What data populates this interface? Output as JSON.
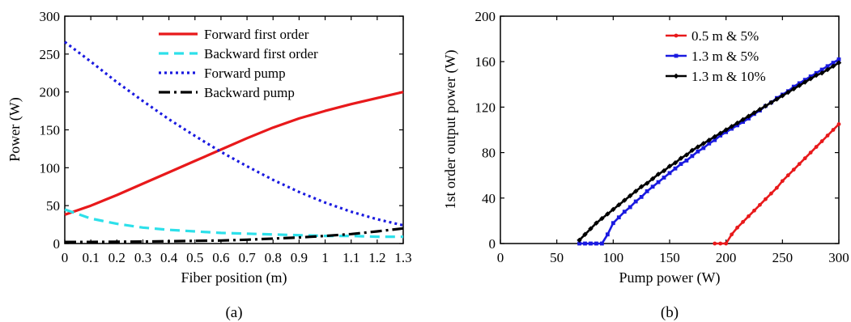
{
  "chart_data": [
    {
      "type": "line",
      "panel_label": "(a)",
      "xlabel": "Fiber position (m)",
      "ylabel": "Power (W)",
      "xlim": [
        0,
        1.3
      ],
      "ylim": [
        0,
        300
      ],
      "xticks": [
        0,
        0.1,
        0.2,
        0.3,
        0.4,
        0.5,
        0.6,
        0.7,
        0.8,
        0.9,
        1,
        1.1,
        1.2,
        1.3
      ],
      "xtick_labels": [
        "0",
        "0.1",
        "0.2",
        "0.3",
        "0.4",
        "0.5",
        "0.6",
        "0.7",
        "0.8",
        "0.9",
        "1",
        "1.1",
        "1.2",
        "1.3"
      ],
      "yticks": [
        0,
        50,
        100,
        150,
        200,
        250,
        300
      ],
      "ytick_labels": [
        "0",
        "50",
        "100",
        "150",
        "200",
        "250",
        "300"
      ],
      "legend_position": "top-right",
      "grid": false,
      "series": [
        {
          "name": "Forward first order",
          "color": "#e8191b",
          "dash": "solid",
          "x": [
            0,
            0.1,
            0.2,
            0.3,
            0.4,
            0.5,
            0.6,
            0.7,
            0.8,
            0.9,
            1.0,
            1.1,
            1.2,
            1.3
          ],
          "y": [
            38,
            50,
            64,
            79,
            94,
            109,
            124,
            139,
            153,
            165,
            175,
            184,
            192,
            200
          ]
        },
        {
          "name": "Backward first order",
          "color": "#2de0ea",
          "dash": "longdash",
          "x": [
            0,
            0.1,
            0.2,
            0.3,
            0.4,
            0.5,
            0.6,
            0.7,
            0.8,
            0.9,
            1.0,
            1.1,
            1.2,
            1.3
          ],
          "y": [
            45,
            33,
            26,
            21,
            18,
            16,
            14,
            13,
            12,
            11,
            10,
            10,
            9,
            9
          ]
        },
        {
          "name": "Forward pump",
          "color": "#1a1ae0",
          "dash": "dotted",
          "x": [
            0,
            0.1,
            0.2,
            0.3,
            0.4,
            0.5,
            0.6,
            0.7,
            0.8,
            0.9,
            1.0,
            1.1,
            1.2,
            1.3
          ],
          "y": [
            266,
            240,
            213,
            188,
            164,
            142,
            121,
            102,
            84,
            68,
            54,
            42,
            32,
            24
          ]
        },
        {
          "name": "Backward pump",
          "color": "#000000",
          "dash": "dashdot",
          "x": [
            0,
            0.1,
            0.2,
            0.3,
            0.4,
            0.5,
            0.6,
            0.7,
            0.8,
            0.9,
            1.0,
            1.1,
            1.2,
            1.3
          ],
          "y": [
            2,
            2,
            2.3,
            2.6,
            3,
            3.5,
            4,
            5,
            6.5,
            8,
            10,
            12.5,
            16,
            20
          ]
        }
      ]
    },
    {
      "type": "line",
      "panel_label": "(b)",
      "xlabel": "Pump power (W)",
      "ylabel": "1st order output power (W)",
      "xlim": [
        0,
        300
      ],
      "ylim": [
        0,
        200
      ],
      "xticks": [
        0,
        50,
        100,
        150,
        200,
        250,
        300
      ],
      "xtick_labels": [
        "0",
        "50",
        "100",
        "150",
        "200",
        "250",
        "300"
      ],
      "yticks": [
        0,
        40,
        80,
        120,
        160,
        200
      ],
      "ytick_labels": [
        "0",
        "40",
        "80",
        "120",
        "160",
        "200"
      ],
      "legend_position": "top-right",
      "grid": false,
      "series": [
        {
          "name": "0.5 m & 5%",
          "color": "#e8191b",
          "marker": "circle",
          "x": [
            190,
            195,
            200,
            205,
            210,
            215,
            220,
            225,
            230,
            235,
            240,
            245,
            250,
            255,
            260,
            265,
            270,
            275,
            280,
            285,
            290,
            295,
            300
          ],
          "y": [
            0,
            0,
            0,
            8,
            14,
            19,
            24,
            29,
            34,
            39,
            44,
            49,
            55,
            60,
            65,
            70,
            75,
            80,
            85,
            90,
            95,
            100,
            105
          ]
        },
        {
          "name": "1.3 m & 5%",
          "color": "#1a1ae0",
          "marker": "square",
          "x": [
            70,
            75,
            80,
            85,
            90,
            95,
            100,
            105,
            110,
            115,
            120,
            125,
            130,
            135,
            140,
            145,
            150,
            155,
            160,
            165,
            170,
            175,
            180,
            185,
            190,
            195,
            200,
            205,
            210,
            215,
            220,
            225,
            230,
            235,
            240,
            245,
            250,
            255,
            260,
            265,
            270,
            275,
            280,
            285,
            290,
            295,
            300
          ],
          "y": [
            0,
            0,
            0,
            0,
            0,
            8,
            18,
            23,
            28,
            32,
            37,
            41,
            46,
            50,
            54,
            58,
            62,
            66,
            70,
            73,
            77,
            81,
            84,
            88,
            91,
            95,
            98,
            101,
            104,
            107,
            110,
            114,
            117,
            121,
            124,
            128,
            131,
            134,
            138,
            141,
            144,
            147,
            150,
            153,
            156,
            159,
            162
          ]
        },
        {
          "name": "1.3 m & 10%",
          "color": "#000000",
          "marker": "diamond",
          "x": [
            70,
            75,
            80,
            85,
            90,
            95,
            100,
            105,
            110,
            115,
            120,
            125,
            130,
            135,
            140,
            145,
            150,
            155,
            160,
            165,
            170,
            175,
            180,
            185,
            190,
            195,
            200,
            205,
            210,
            215,
            220,
            225,
            230,
            235,
            240,
            245,
            250,
            255,
            260,
            265,
            270,
            275,
            280,
            285,
            290,
            295,
            300
          ],
          "y": [
            3,
            8,
            13,
            18,
            22,
            26,
            30,
            34,
            38,
            42,
            46,
            50,
            53,
            57,
            61,
            64,
            68,
            71,
            75,
            78,
            82,
            85,
            88,
            91,
            94,
            97,
            100,
            103,
            106,
            109,
            112,
            115,
            118,
            121,
            124,
            127,
            130,
            133,
            136,
            139,
            142,
            145,
            148,
            150,
            153,
            156,
            159
          ]
        }
      ]
    }
  ]
}
